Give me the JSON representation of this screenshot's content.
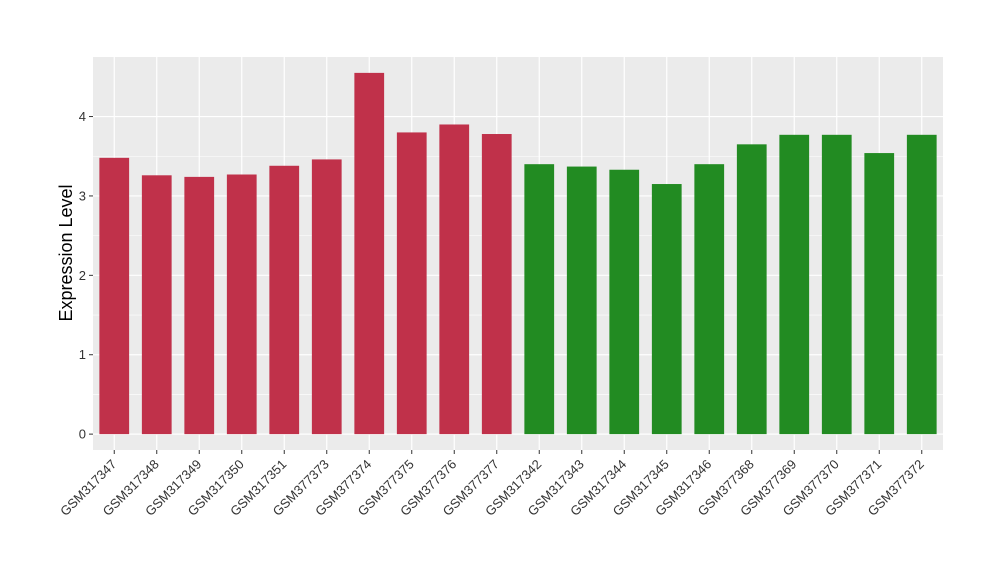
{
  "chart_data": {
    "type": "bar",
    "title": "",
    "xlabel": "",
    "ylabel": "Expression Level",
    "ylim": [
      -0.2,
      4.75
    ],
    "yticks": [
      0,
      1,
      2,
      3,
      4
    ],
    "grid": true,
    "categories": [
      "GSM317347",
      "GSM317348",
      "GSM317349",
      "GSM317350",
      "GSM317351",
      "GSM377373",
      "GSM377374",
      "GSM377375",
      "GSM377376",
      "GSM377377",
      "GSM317342",
      "GSM317343",
      "GSM317344",
      "GSM317345",
      "GSM317346",
      "GSM377368",
      "GSM377369",
      "GSM377370",
      "GSM377371",
      "GSM377372"
    ],
    "values": [
      3.48,
      3.26,
      3.24,
      3.27,
      3.38,
      3.46,
      4.55,
      3.8,
      3.9,
      3.78,
      3.4,
      3.37,
      3.33,
      3.15,
      3.4,
      3.65,
      3.77,
      3.77,
      3.54,
      3.77
    ],
    "colors": [
      "#c0314a",
      "#c0314a",
      "#c0314a",
      "#c0314a",
      "#c0314a",
      "#c0314a",
      "#c0314a",
      "#c0314a",
      "#c0314a",
      "#c0314a",
      "#228b22",
      "#228b22",
      "#228b22",
      "#228b22",
      "#228b22",
      "#228b22",
      "#228b22",
      "#228b22",
      "#228b22",
      "#228b22"
    ],
    "panel_background": "#ebebeb",
    "gridline_color": "#ffffff"
  }
}
